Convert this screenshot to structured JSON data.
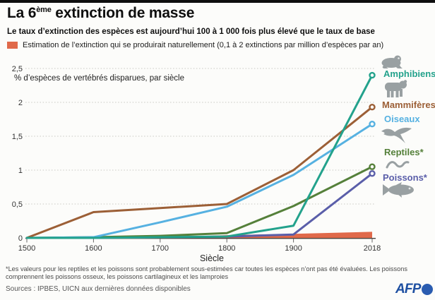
{
  "header": {
    "title_prefix": "La 6",
    "title_sup": "ème",
    "title_suffix": " extinction de masse",
    "subtitle": "Le taux d’extinction des espèces est aujourd’hui 100 à 1 000 fois plus élevé que le taux de base",
    "nat_legend_label": "Estimation de l’extinction qui se produirait naturellement (0,1 à 2 extinctions par million d’espèces par an)",
    "nat_legend_color": "#e0694a"
  },
  "chart_data": {
    "type": "line",
    "ylabel": "% d’espèces de vertébrés disparues, par siècle",
    "xlabel": "Siècle",
    "x": [
      1500,
      1600,
      1700,
      1800,
      1900,
      2018
    ],
    "x_tick_labels": [
      "1500",
      "1600",
      "1700",
      "1800",
      "1900",
      "2018"
    ],
    "y_ticks": [
      0,
      0.5,
      1,
      1.5,
      2,
      2.5
    ],
    "y_tick_labels": [
      "0",
      "0,5",
      "1",
      "1,5",
      "2",
      "2,5"
    ],
    "xlim": [
      1500,
      2018
    ],
    "ylim": [
      0,
      2.5
    ],
    "grid": "horizontal-dotted",
    "legend_position": "right",
    "series": [
      {
        "name": "Amphibiens",
        "color": "#23a28c",
        "values": [
          0,
          0,
          0.01,
          0.02,
          0.18,
          2.4
        ]
      },
      {
        "name": "Mammifères",
        "color": "#9c5f36",
        "values": [
          0,
          0.38,
          0.44,
          0.5,
          1.0,
          1.93
        ]
      },
      {
        "name": "Oiseaux",
        "color": "#56b1e1",
        "values": [
          0,
          0.01,
          0.23,
          0.46,
          0.93,
          1.68
        ]
      },
      {
        "name": "Reptiles*",
        "color": "#55803a",
        "values": [
          0,
          0.01,
          0.03,
          0.07,
          0.47,
          1.05
        ]
      },
      {
        "name": "Poissons*",
        "color": "#5a5ea9",
        "values": [
          0,
          0,
          0.01,
          0.02,
          0.05,
          0.95
        ]
      }
    ],
    "natural_band": {
      "name": "Estimation de l’extinction naturelle",
      "color": "#e0694a",
      "x": [
        1700,
        1800,
        1900,
        2018
      ],
      "top": [
        0.005,
        0.04,
        0.06,
        0.09
      ]
    }
  },
  "side_legend": [
    {
      "label": "Amphibiens",
      "color": "#23a28c",
      "icon": "frog-icon"
    },
    {
      "label": "Mammifères",
      "color": "#9c5f36",
      "icon": "bear-icon"
    },
    {
      "label": "Oiseaux",
      "color": "#56b1e1",
      "icon": "eagle-icon"
    },
    {
      "label": "Reptiles*",
      "color": "#55803a",
      "icon": "snake-icon"
    },
    {
      "label": "Poissons*",
      "color": "#5a5ea9",
      "icon": "fish-icon"
    }
  ],
  "icon_color": "#99a0a2",
  "footer": {
    "footnote": "*Les valeurs pour les reptiles et les poissons sont probablement sous-estimées car toutes les espèces n’ont pas été évaluées. Les poissons comprennent les poissons osseux, les poissons cartilagineux et les lamproies",
    "sources": "Sources : IPBES, UICN aux dernières données disponibles",
    "logo": "AFP"
  }
}
